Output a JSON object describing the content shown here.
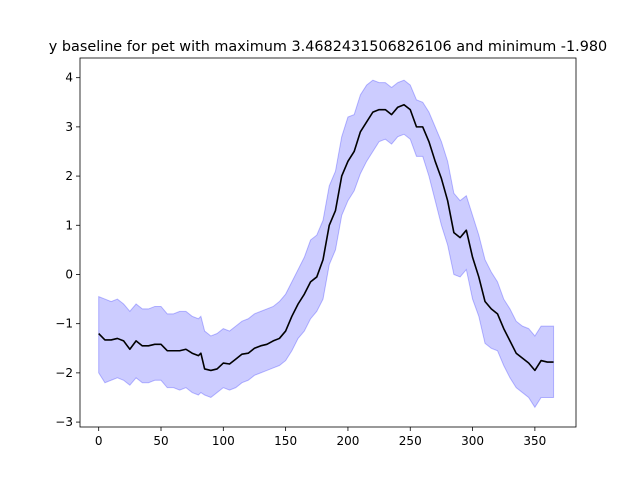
{
  "chart_data": {
    "type": "line",
    "title": "y baseline for pet with maximum 3.4682431506826106 and minimum -1.980",
    "xlabel": "",
    "ylabel": "",
    "xlim": [
      -15,
      383
    ],
    "ylim": [
      -3.1,
      4.4
    ],
    "grid": false,
    "x_ticks": [
      0,
      50,
      100,
      150,
      200,
      250,
      300,
      350
    ],
    "y_ticks": [
      -3,
      -2,
      -1,
      0,
      1,
      2,
      3,
      4
    ],
    "x_tick_labels": [
      "0",
      "50",
      "100",
      "150",
      "200",
      "250",
      "300",
      "350"
    ],
    "y_tick_labels": [
      "−3",
      "−2",
      "−1",
      "0",
      "1",
      "2",
      "3",
      "4"
    ],
    "series": [
      {
        "color": "#000000",
        "band_color": "#0000ff",
        "band_opacity": 0.2,
        "x": [
          0,
          5,
          10,
          15,
          20,
          25,
          30,
          35,
          40,
          45,
          50,
          55,
          60,
          65,
          70,
          75,
          80,
          82,
          85,
          90,
          95,
          100,
          105,
          110,
          115,
          120,
          125,
          130,
          135,
          140,
          145,
          150,
          155,
          160,
          165,
          170,
          175,
          180,
          185,
          190,
          195,
          200,
          205,
          210,
          215,
          220,
          225,
          230,
          235,
          240,
          245,
          250,
          255,
          260,
          265,
          270,
          275,
          280,
          285,
          290,
          295,
          300,
          305,
          310,
          315,
          320,
          325,
          330,
          335,
          340,
          345,
          350,
          355,
          360,
          365
        ],
        "y": [
          -1.2,
          -1.33,
          -1.33,
          -1.3,
          -1.35,
          -1.52,
          -1.35,
          -1.45,
          -1.45,
          -1.42,
          -1.42,
          -1.55,
          -1.55,
          -1.55,
          -1.52,
          -1.6,
          -1.65,
          -1.6,
          -1.92,
          -1.95,
          -1.92,
          -1.8,
          -1.82,
          -1.72,
          -1.62,
          -1.6,
          -1.5,
          -1.45,
          -1.42,
          -1.35,
          -1.3,
          -1.15,
          -0.85,
          -0.6,
          -0.4,
          -0.15,
          -0.05,
          0.3,
          1.0,
          1.3,
          2.0,
          2.3,
          2.5,
          2.9,
          3.1,
          3.3,
          3.35,
          3.35,
          3.25,
          3.4,
          3.45,
          3.35,
          3.0,
          3.0,
          2.7,
          2.3,
          1.95,
          1.5,
          0.85,
          0.75,
          0.9,
          0.35,
          -0.05,
          -0.55,
          -0.7,
          -0.8,
          -1.1,
          -1.35,
          -1.6,
          -1.7,
          -1.8,
          -1.95,
          -1.75,
          -1.78,
          -1.78
        ],
        "upper": [
          -0.45,
          -0.5,
          -0.55,
          -0.5,
          -0.6,
          -0.75,
          -0.6,
          -0.7,
          -0.7,
          -0.65,
          -0.65,
          -0.8,
          -0.8,
          -0.75,
          -0.75,
          -0.85,
          -0.9,
          -0.85,
          -1.15,
          -1.25,
          -1.2,
          -1.1,
          -1.15,
          -1.05,
          -0.95,
          -0.9,
          -0.8,
          -0.75,
          -0.7,
          -0.65,
          -0.55,
          -0.4,
          -0.15,
          0.1,
          0.35,
          0.7,
          0.8,
          1.1,
          1.8,
          2.1,
          2.8,
          3.2,
          3.25,
          3.65,
          3.85,
          3.95,
          3.9,
          3.9,
          3.8,
          3.9,
          3.95,
          3.85,
          3.55,
          3.5,
          3.3,
          3.0,
          2.7,
          2.3,
          1.65,
          1.5,
          1.6,
          1.2,
          0.8,
          0.3,
          0.05,
          -0.15,
          -0.5,
          -0.7,
          -0.95,
          -1.05,
          -1.1,
          -1.25,
          -1.05,
          -1.05,
          -1.05
        ],
        "lower": [
          -2.0,
          -2.2,
          -2.15,
          -2.1,
          -2.15,
          -2.25,
          -2.1,
          -2.2,
          -2.2,
          -2.15,
          -2.15,
          -2.3,
          -2.3,
          -2.35,
          -2.3,
          -2.4,
          -2.45,
          -2.4,
          -2.45,
          -2.5,
          -2.4,
          -2.3,
          -2.35,
          -2.3,
          -2.2,
          -2.15,
          -2.05,
          -2.0,
          -1.95,
          -1.9,
          -1.85,
          -1.75,
          -1.55,
          -1.3,
          -1.15,
          -0.9,
          -0.75,
          -0.5,
          0.2,
          0.5,
          1.2,
          1.5,
          1.7,
          2.05,
          2.3,
          2.5,
          2.7,
          2.75,
          2.65,
          2.8,
          2.85,
          2.75,
          2.4,
          2.4,
          2.0,
          1.5,
          1.0,
          0.6,
          0.0,
          -0.05,
          0.1,
          -0.5,
          -0.85,
          -1.4,
          -1.5,
          -1.55,
          -1.85,
          -2.1,
          -2.3,
          -2.4,
          -2.5,
          -2.7,
          -2.5,
          -2.5,
          -2.5
        ]
      }
    ]
  }
}
